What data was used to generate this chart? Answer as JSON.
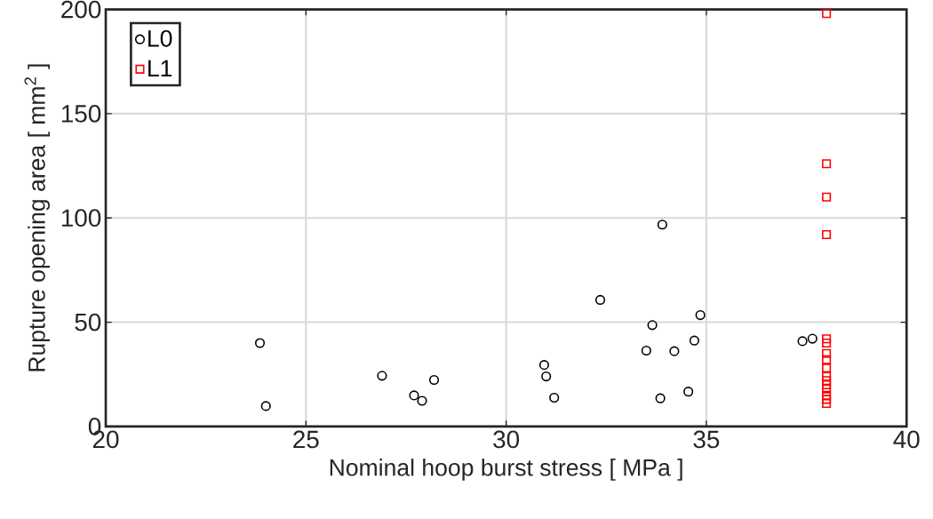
{
  "chart_data": {
    "type": "scatter",
    "xlabel": "Nominal hoop burst stress [ MPa ]",
    "ylabel": "Rupture opening area [ mm$^{2}$ ]",
    "xlim": [
      20,
      40
    ],
    "ylim": [
      0,
      200
    ],
    "xticks": [
      20,
      25,
      30,
      35,
      40
    ],
    "yticks": [
      0,
      50,
      100,
      150,
      200
    ],
    "grid": true,
    "legend": "top left",
    "series": [
      {
        "name": "L0",
        "color": "#000000",
        "marker": "circle",
        "x": [
          23.85,
          24.0,
          26.9,
          27.7,
          27.9,
          28.2,
          30.95,
          31.0,
          31.2,
          32.35,
          33.65,
          33.5,
          34.2,
          34.7,
          34.85,
          33.85,
          34.55,
          33.9,
          37.4,
          37.65
        ],
        "values": [
          40.0,
          9.8,
          24.3,
          14.9,
          12.3,
          22.3,
          29.5,
          24.0,
          13.8,
          60.7,
          48.6,
          36.4,
          36.1,
          41.2,
          53.4,
          13.5,
          16.7,
          96.8,
          40.9,
          42.1
        ]
      },
      {
        "name": "L1",
        "color": "#ff0000",
        "marker": "square",
        "x": [
          38.0,
          38.0,
          38.0,
          38.0,
          38.0,
          38.0,
          38.0,
          38.0,
          38.0,
          38.0,
          38.0,
          38.0,
          38.0,
          38.0,
          38.0,
          38.0
        ],
        "values": [
          198,
          126,
          110,
          92,
          42,
          40,
          35,
          32,
          28,
          24,
          22,
          20,
          18,
          15,
          13,
          11
        ]
      }
    ]
  }
}
